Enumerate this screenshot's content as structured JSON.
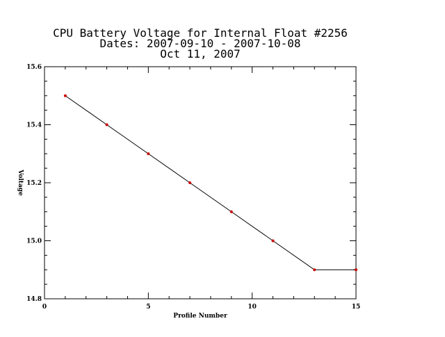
{
  "chart_data": {
    "type": "line",
    "title_lines": [
      "CPU Battery Voltage for Internal Float #2256",
      "Dates:  2007-09-10 -  2007-10-08",
      "Oct 11, 2007"
    ],
    "xlabel": "Profile Number",
    "ylabel": "Voltage",
    "xlim": [
      0,
      15
    ],
    "ylim": [
      14.8,
      15.6
    ],
    "x_ticks": [
      0,
      5,
      10,
      15
    ],
    "x_tick_labels": [
      "0",
      "5",
      "10",
      "15"
    ],
    "y_ticks": [
      14.8,
      15.0,
      15.2,
      15.4,
      15.6
    ],
    "y_tick_labels": [
      "14.8",
      "15.0",
      "15.2",
      "15.4",
      "15.6"
    ],
    "grid": false,
    "series": [
      {
        "x": [
          1,
          3,
          5,
          7,
          9,
          11,
          13,
          15
        ],
        "y": [
          15.5,
          15.4,
          15.3,
          15.2,
          15.1,
          15.0,
          14.9,
          14.9
        ],
        "line_color": "#000000",
        "marker_color": "#cc0000"
      }
    ]
  }
}
